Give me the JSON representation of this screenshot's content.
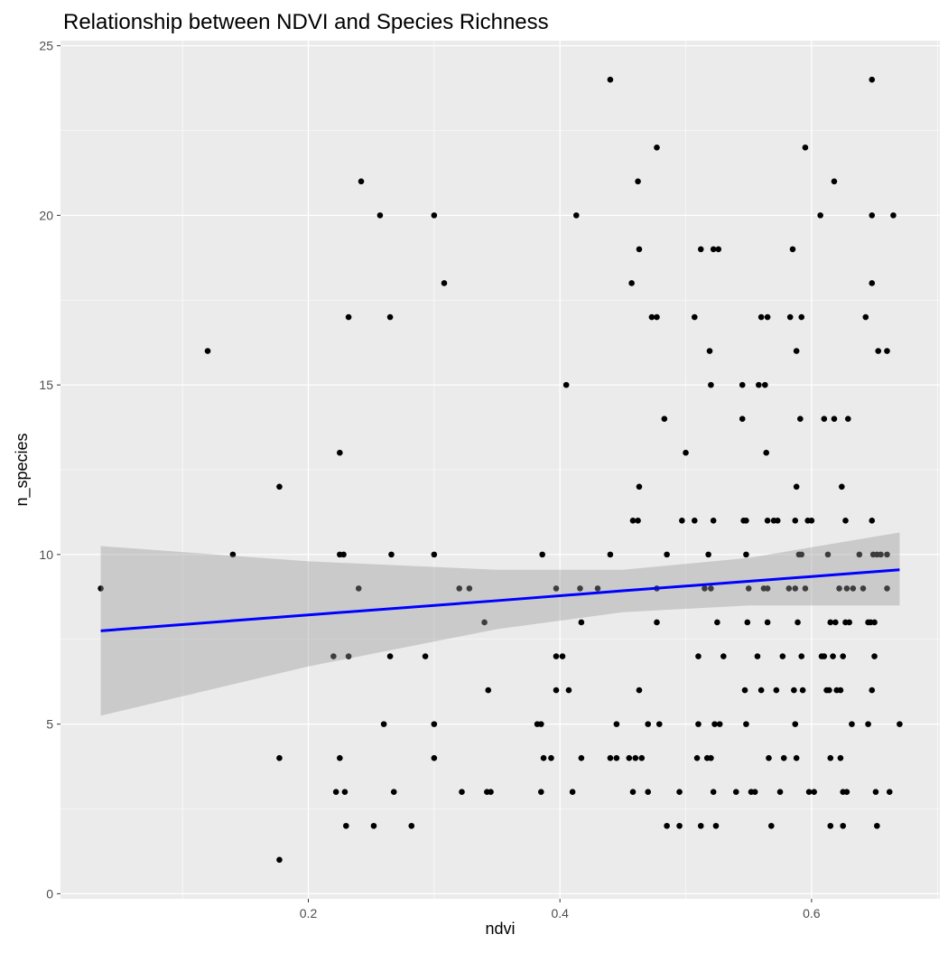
{
  "chart_data": {
    "type": "scatter",
    "title": "Relationship between NDVI and Species Richness",
    "x_label": "ndvi",
    "y_label": "n_species",
    "xlim": [
      0.003,
      0.702
    ],
    "ylim": [
      -0.15,
      25.15
    ],
    "xticks": [
      0.2,
      0.4,
      0.6
    ],
    "yticks": [
      0,
      5,
      10,
      15,
      20,
      25
    ],
    "xminor": [
      0.1,
      0.3,
      0.5,
      0.7
    ],
    "yminor": [
      2.5,
      7.5,
      12.5,
      17.5,
      22.5
    ],
    "grid": true,
    "color": "#000000",
    "x": [
      0.035,
      0.12,
      0.14,
      0.177,
      0.177,
      0.177,
      0.22,
      0.222,
      0.225,
      0.225,
      0.228,
      0.225,
      0.229,
      0.23,
      0.232,
      0.232,
      0.24,
      0.242,
      0.252,
      0.257,
      0.26,
      0.265,
      0.266,
      0.265,
      0.268,
      0.282,
      0.293,
      0.3,
      0.3,
      0.3,
      0.3,
      0.308,
      0.32,
      0.322,
      0.328,
      0.34,
      0.343,
      0.342,
      0.345,
      0.382,
      0.385,
      0.386,
      0.385,
      0.387,
      0.393,
      0.397,
      0.397,
      0.397,
      0.402,
      0.405,
      0.407,
      0.41,
      0.413,
      0.416,
      0.417,
      0.417,
      0.43,
      0.44,
      0.44,
      0.44,
      0.445,
      0.445,
      0.455,
      0.457,
      0.458,
      0.458,
      0.46,
      0.462,
      0.462,
      0.463,
      0.463,
      0.463,
      0.465,
      0.47,
      0.47,
      0.473,
      0.477,
      0.477,
      0.477,
      0.477,
      0.479,
      0.483,
      0.485,
      0.485,
      0.495,
      0.495,
      0.497,
      0.5,
      0.507,
      0.507,
      0.509,
      0.51,
      0.51,
      0.512,
      0.512,
      0.515,
      0.517,
      0.518,
      0.519,
      0.52,
      0.52,
      0.52,
      0.522,
      0.522,
      0.522,
      0.523,
      0.524,
      0.525,
      0.526,
      0.527,
      0.53,
      0.54,
      0.545,
      0.545,
      0.546,
      0.547,
      0.548,
      0.548,
      0.548,
      0.549,
      0.55,
      0.552,
      0.555,
      0.557,
      0.558,
      0.56,
      0.56,
      0.562,
      0.563,
      0.564,
      0.565,
      0.565,
      0.565,
      0.565,
      0.566,
      0.568,
      0.57,
      0.572,
      0.573,
      0.575,
      0.577,
      0.578,
      0.582,
      0.583,
      0.585,
      0.586,
      0.587,
      0.587,
      0.587,
      0.588,
      0.588,
      0.588,
      0.589,
      0.59,
      0.591,
      0.592,
      0.592,
      0.592,
      0.593,
      0.595,
      0.595,
      0.597,
      0.598,
      0.6,
      0.602,
      0.607,
      0.608,
      0.61,
      0.61,
      0.612,
      0.613,
      0.614,
      0.615,
      0.615,
      0.615,
      0.617,
      0.618,
      0.618,
      0.619,
      0.62,
      0.622,
      0.623,
      0.623,
      0.624,
      0.625,
      0.625,
      0.625,
      0.627,
      0.627,
      0.628,
      0.628,
      0.629,
      0.63,
      0.632,
      0.633,
      0.638,
      0.641,
      0.643,
      0.645,
      0.645,
      0.647,
      0.648,
      0.648,
      0.648,
      0.648,
      0.648,
      0.649,
      0.65,
      0.65,
      0.651,
      0.652,
      0.652,
      0.653,
      0.655,
      0.66,
      0.66,
      0.66,
      0.662,
      0.665,
      0.67
    ],
    "values": [
      9,
      16,
      10,
      12,
      4,
      1,
      7,
      3,
      13,
      10,
      10,
      4,
      3,
      2,
      17,
      7,
      9,
      21,
      2,
      20,
      5,
      17,
      10,
      7,
      3,
      2,
      7,
      20,
      10,
      5,
      4,
      18,
      9,
      3,
      9,
      8,
      6,
      3,
      3,
      5,
      5,
      10,
      3,
      4,
      4,
      9,
      7,
      6,
      7,
      15,
      6,
      3,
      20,
      9,
      8,
      4,
      9,
      24,
      10,
      4,
      5,
      4,
      4,
      18,
      11,
      3,
      4,
      21,
      11,
      19,
      12,
      6,
      4,
      5,
      3,
      17,
      22,
      17,
      9,
      8,
      5,
      14,
      2,
      10,
      2,
      3,
      11,
      13,
      17,
      11,
      4,
      5,
      7,
      2,
      19,
      9,
      4,
      10,
      16,
      15,
      9,
      4,
      19,
      11,
      3,
      5,
      2,
      8,
      19,
      5,
      7,
      3,
      15,
      14,
      11,
      6,
      5,
      11,
      10,
      8,
      9,
      3,
      3,
      7,
      15,
      17,
      6,
      9,
      15,
      13,
      17,
      11,
      9,
      8,
      4,
      2,
      11,
      6,
      11,
      3,
      7,
      4,
      9,
      17,
      19,
      6,
      11,
      9,
      5,
      4,
      12,
      16,
      8,
      10,
      14,
      17,
      10,
      7,
      6,
      22,
      9,
      11,
      3,
      11,
      3,
      20,
      7,
      7,
      14,
      6,
      10,
      6,
      8,
      4,
      2,
      7,
      14,
      21,
      8,
      6,
      9,
      6,
      4,
      12,
      2,
      7,
      3,
      11,
      8,
      9,
      3,
      14,
      8,
      5,
      9,
      10,
      9,
      17,
      5,
      8,
      8,
      24,
      20,
      18,
      11,
      6,
      10,
      8,
      7,
      3,
      2,
      10,
      16,
      10,
      10,
      16,
      9,
      3,
      20,
      5
    ],
    "fit": {
      "color": "#0000ff",
      "fill": "#999999",
      "x": [
        0.035,
        0.2,
        0.35,
        0.45,
        0.55,
        0.67
      ],
      "values": [
        7.75,
        8.22,
        8.64,
        8.93,
        9.21,
        9.55
      ],
      "lower": [
        5.25,
        6.7,
        7.8,
        8.3,
        8.5,
        8.5
      ],
      "upper": [
        10.25,
        9.8,
        9.55,
        9.55,
        9.9,
        10.65
      ]
    }
  }
}
